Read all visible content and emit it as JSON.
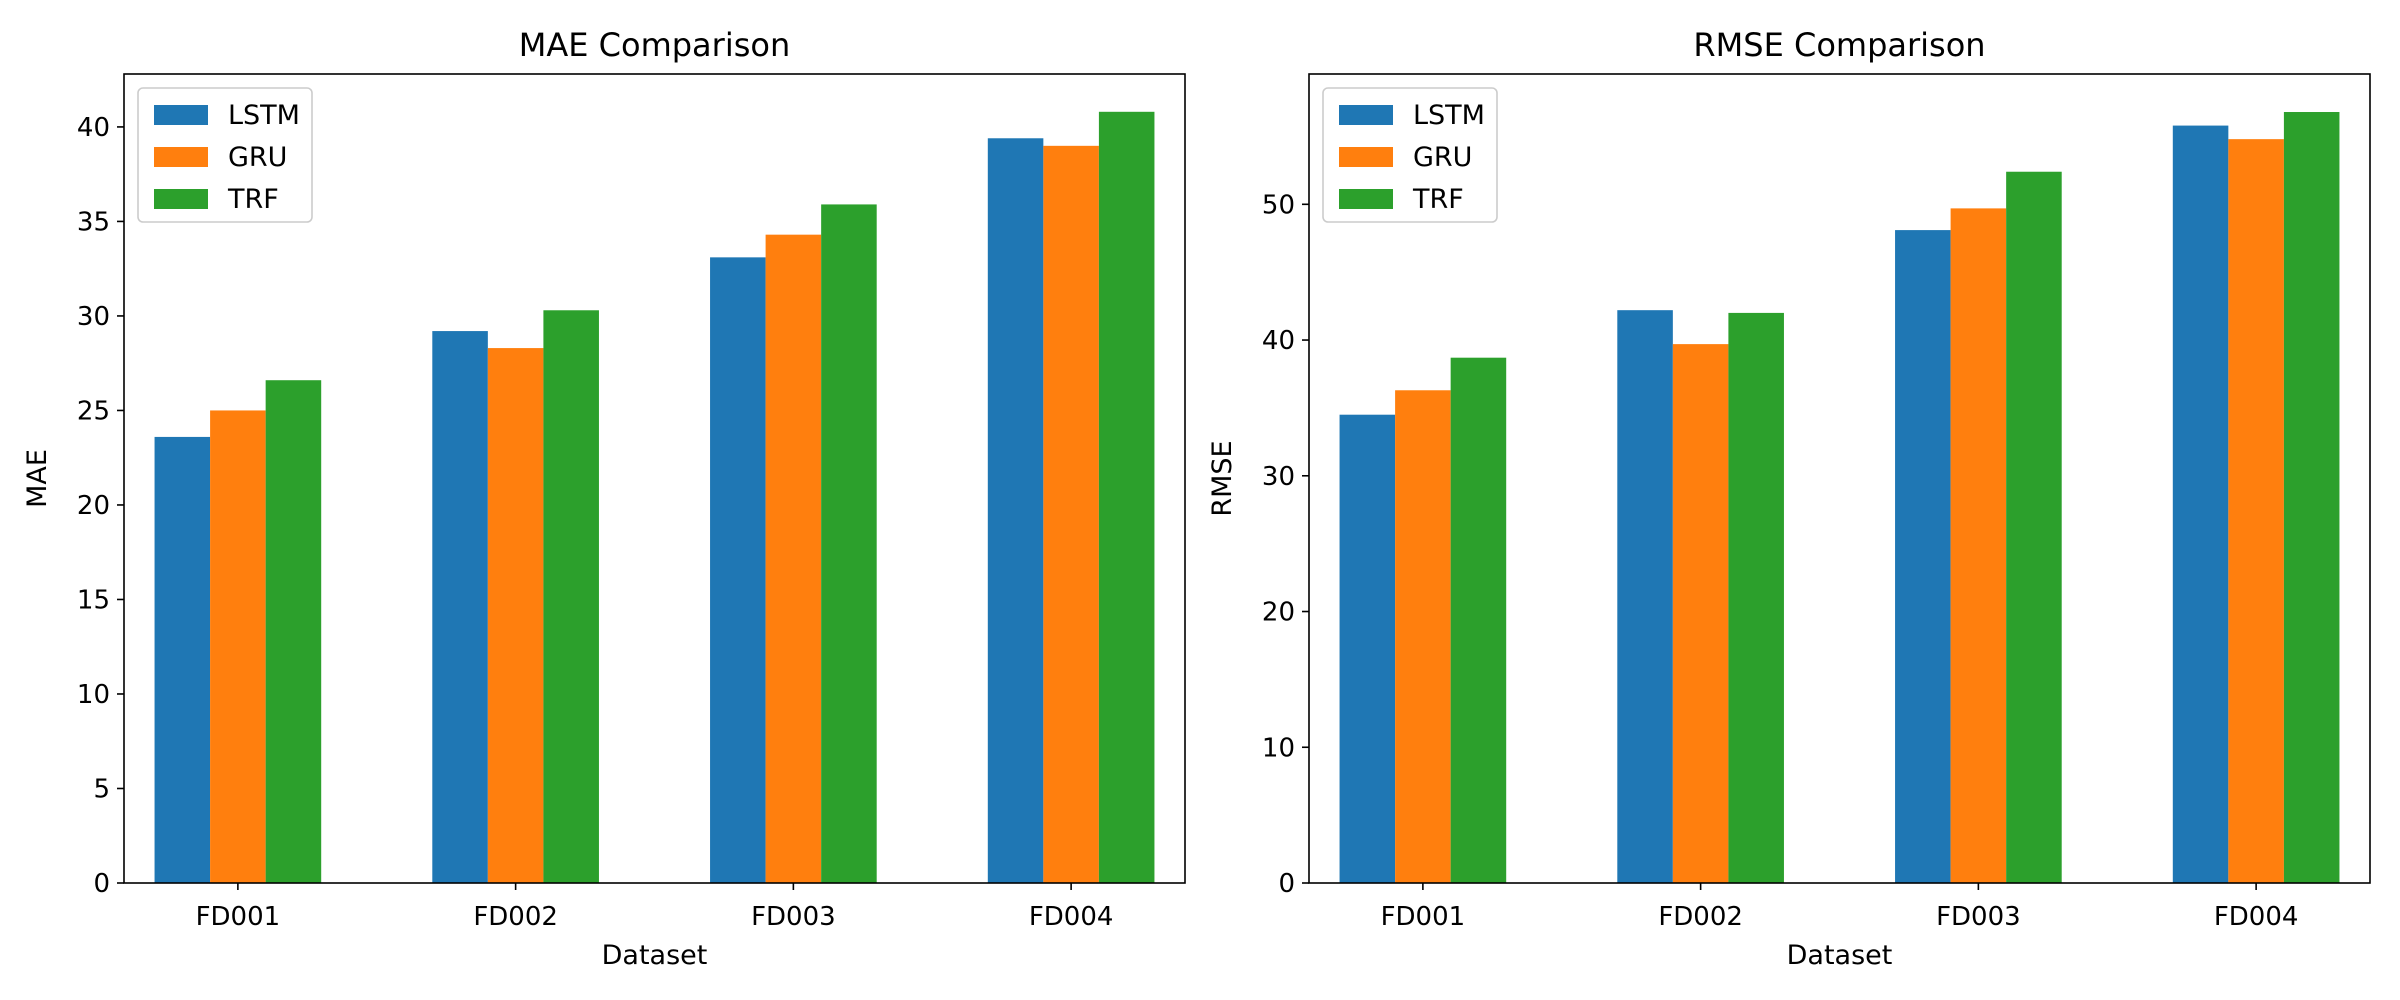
{
  "chart_data": [
    {
      "type": "bar",
      "title": "MAE Comparison",
      "xlabel": "Dataset",
      "ylabel": "MAE",
      "categories": [
        "FD001",
        "FD002",
        "FD003",
        "FD004"
      ],
      "series": [
        {
          "name": "LSTM",
          "color": "#1f77b4",
          "values": [
            23.6,
            29.2,
            33.1,
            39.4
          ]
        },
        {
          "name": "GRU",
          "color": "#ff7f0e",
          "values": [
            25.0,
            28.3,
            34.3,
            39.0
          ]
        },
        {
          "name": "TRF",
          "color": "#2ca02c",
          "values": [
            26.6,
            30.3,
            35.9,
            40.8
          ]
        }
      ],
      "ylim": [
        0,
        42.8
      ],
      "yticks": [
        0,
        5,
        10,
        15,
        20,
        25,
        30,
        35,
        40
      ],
      "legend": "top-left",
      "grid": false
    },
    {
      "type": "bar",
      "title": "RMSE Comparison",
      "xlabel": "Dataset",
      "ylabel": "RMSE",
      "categories": [
        "FD001",
        "FD002",
        "FD003",
        "FD004"
      ],
      "series": [
        {
          "name": "LSTM",
          "color": "#1f77b4",
          "values": [
            34.5,
            42.2,
            48.1,
            55.8
          ]
        },
        {
          "name": "GRU",
          "color": "#ff7f0e",
          "values": [
            36.3,
            39.7,
            49.7,
            54.8
          ]
        },
        {
          "name": "TRF",
          "color": "#2ca02c",
          "values": [
            38.7,
            42.0,
            52.4,
            56.8
          ]
        }
      ],
      "ylim": [
        0,
        59.6
      ],
      "yticks": [
        0,
        10,
        20,
        30,
        40,
        50
      ],
      "legend": "top-left",
      "grid": false
    }
  ]
}
